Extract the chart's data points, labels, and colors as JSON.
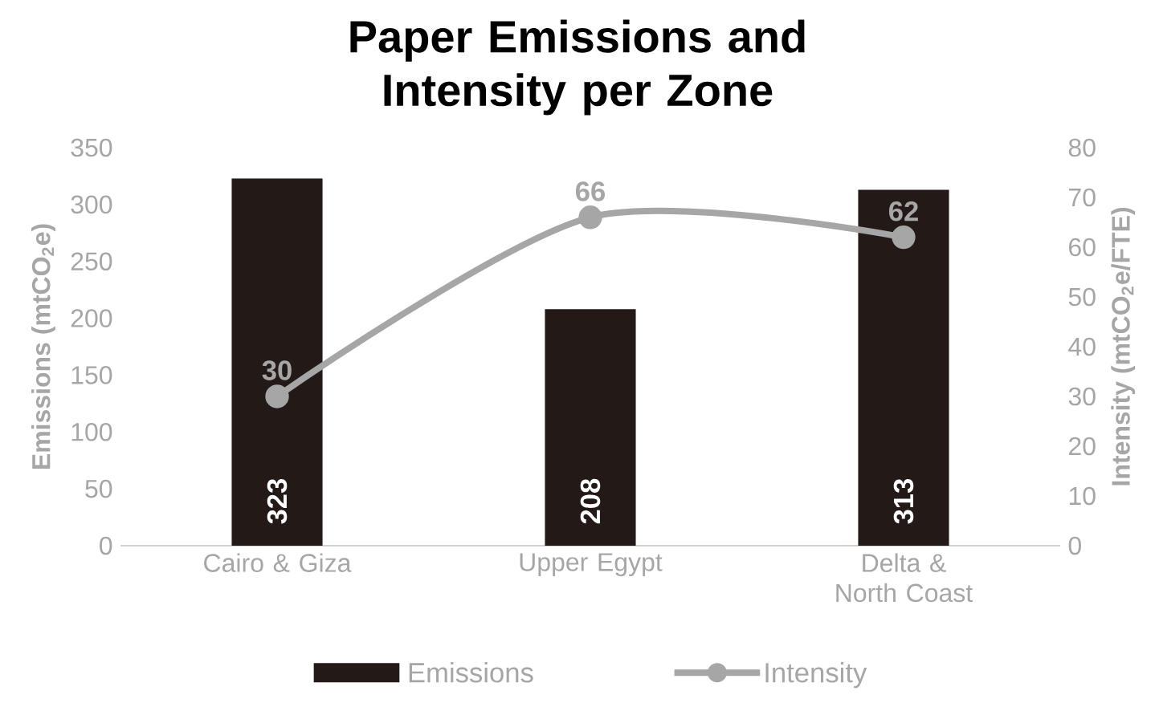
{
  "chart_data": {
    "type": "bar",
    "title": "Paper Emissions and Intensity per Zone",
    "categories": [
      "Cairo & Giza",
      "Upper Egypt",
      "Delta & North Coast"
    ],
    "ylabel": "Emissions (mtCO$_{2}$e)",
    "y2label": "Intensity (mtCO$_{2}$e/FTE)",
    "ylim": [
      0,
      350
    ],
    "yticks": [
      0,
      50,
      100,
      150,
      200,
      250,
      300,
      350
    ],
    "y2lim": [
      0,
      80
    ],
    "y2ticks": [
      0,
      10,
      20,
      30,
      40,
      50,
      60,
      70,
      80
    ],
    "series": [
      {
        "name": "Emissions",
        "type": "bar",
        "color": "#231a18",
        "values": [
          323,
          208,
          313
        ]
      },
      {
        "name": "Intensity",
        "type": "line",
        "axis": "y2",
        "color": "#a6a6a6",
        "marker": "circle",
        "line_style": "solid",
        "values": [
          30,
          66,
          62
        ]
      }
    ],
    "data_labels": true,
    "legend": "bottom",
    "grid": false
  }
}
